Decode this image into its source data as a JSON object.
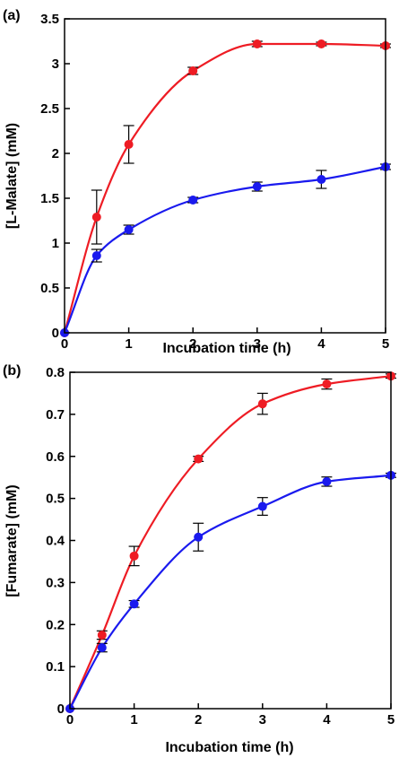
{
  "chart_data": [
    {
      "type": "line",
      "panel_label": "(a)",
      "xlabel": "Incubation time (h)",
      "ylabel": "[L-Malate] (mM)",
      "xlim": [
        0,
        5
      ],
      "ylim": [
        0,
        3.5
      ],
      "x_ticks": [
        "0",
        "1",
        "2",
        "3",
        "4",
        "5"
      ],
      "y_ticks": [
        "0",
        "0.5",
        "1",
        "1.5",
        "2",
        "2.5",
        "3",
        "3.5"
      ],
      "x": [
        0,
        0.5,
        1,
        2,
        3,
        4,
        5
      ],
      "series": [
        {
          "color": "#ee1c24",
          "values": [
            0,
            1.29,
            2.1,
            2.92,
            3.22,
            3.22,
            3.2
          ],
          "errors": [
            0,
            0.3,
            0.21,
            0.04,
            0.03,
            0.02,
            0.02
          ]
        },
        {
          "color": "#1a1aee",
          "values": [
            0,
            0.86,
            1.15,
            1.48,
            1.63,
            1.71,
            1.85
          ],
          "errors": [
            0,
            0.07,
            0.05,
            0.03,
            0.05,
            0.1,
            0.03
          ]
        }
      ],
      "grid": false,
      "legend": "none"
    },
    {
      "type": "line",
      "panel_label": "(b)",
      "xlabel": "Incubation time (h)",
      "ylabel": "[Fumarate] (mM)",
      "xlim": [
        0,
        5
      ],
      "ylim": [
        0,
        0.8
      ],
      "x_ticks": [
        "0",
        "1",
        "2",
        "3",
        "4",
        "5"
      ],
      "y_ticks": [
        "0",
        "0.1",
        "0.2",
        "0.3",
        "0.4",
        "0.5",
        "0.6",
        "0.7",
        "0.8"
      ],
      "x": [
        0,
        0.5,
        1,
        2,
        3,
        4,
        5
      ],
      "series": [
        {
          "color": "#ee1c24",
          "values": [
            0,
            0.175,
            0.363,
            0.594,
            0.725,
            0.772,
            0.791
          ],
          "errors": [
            0,
            0.01,
            0.023,
            0.006,
            0.025,
            0.012,
            0.005
          ]
        },
        {
          "color": "#1a1aee",
          "values": [
            0,
            0.145,
            0.249,
            0.408,
            0.481,
            0.54,
            0.555
          ],
          "errors": [
            0,
            0.01,
            0.008,
            0.033,
            0.021,
            0.011,
            0.005
          ]
        }
      ],
      "grid": false,
      "legend": "none"
    }
  ]
}
